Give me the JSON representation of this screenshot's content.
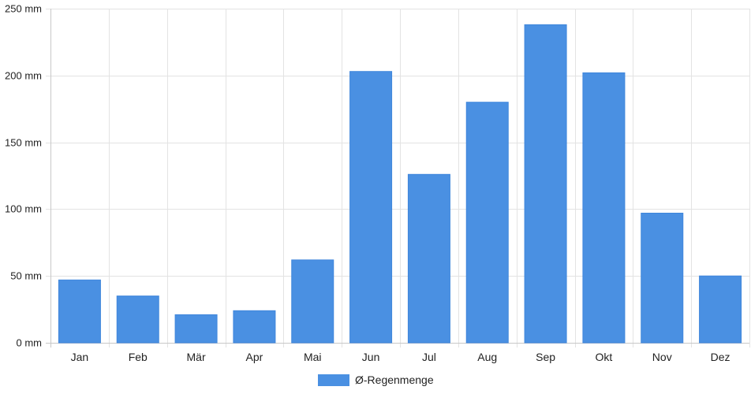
{
  "chart_data": {
    "type": "bar",
    "categories": [
      "Jan",
      "Feb",
      "Mär",
      "Apr",
      "Mai",
      "Jun",
      "Jul",
      "Aug",
      "Sep",
      "Okt",
      "Nov",
      "Dez"
    ],
    "series": [
      {
        "name": "Ø-Regenmenge",
        "values": [
          47,
          35,
          21,
          24,
          62,
          203,
          126,
          180,
          238,
          202,
          97,
          50
        ],
        "color": "#4a90e2"
      }
    ],
    "y_ticks": [
      "0 mm",
      "50 mm",
      "100 mm",
      "150 mm",
      "200 mm",
      "250 mm"
    ],
    "ylim": [
      0,
      250
    ],
    "grid": true,
    "legend_position": "bottom"
  }
}
